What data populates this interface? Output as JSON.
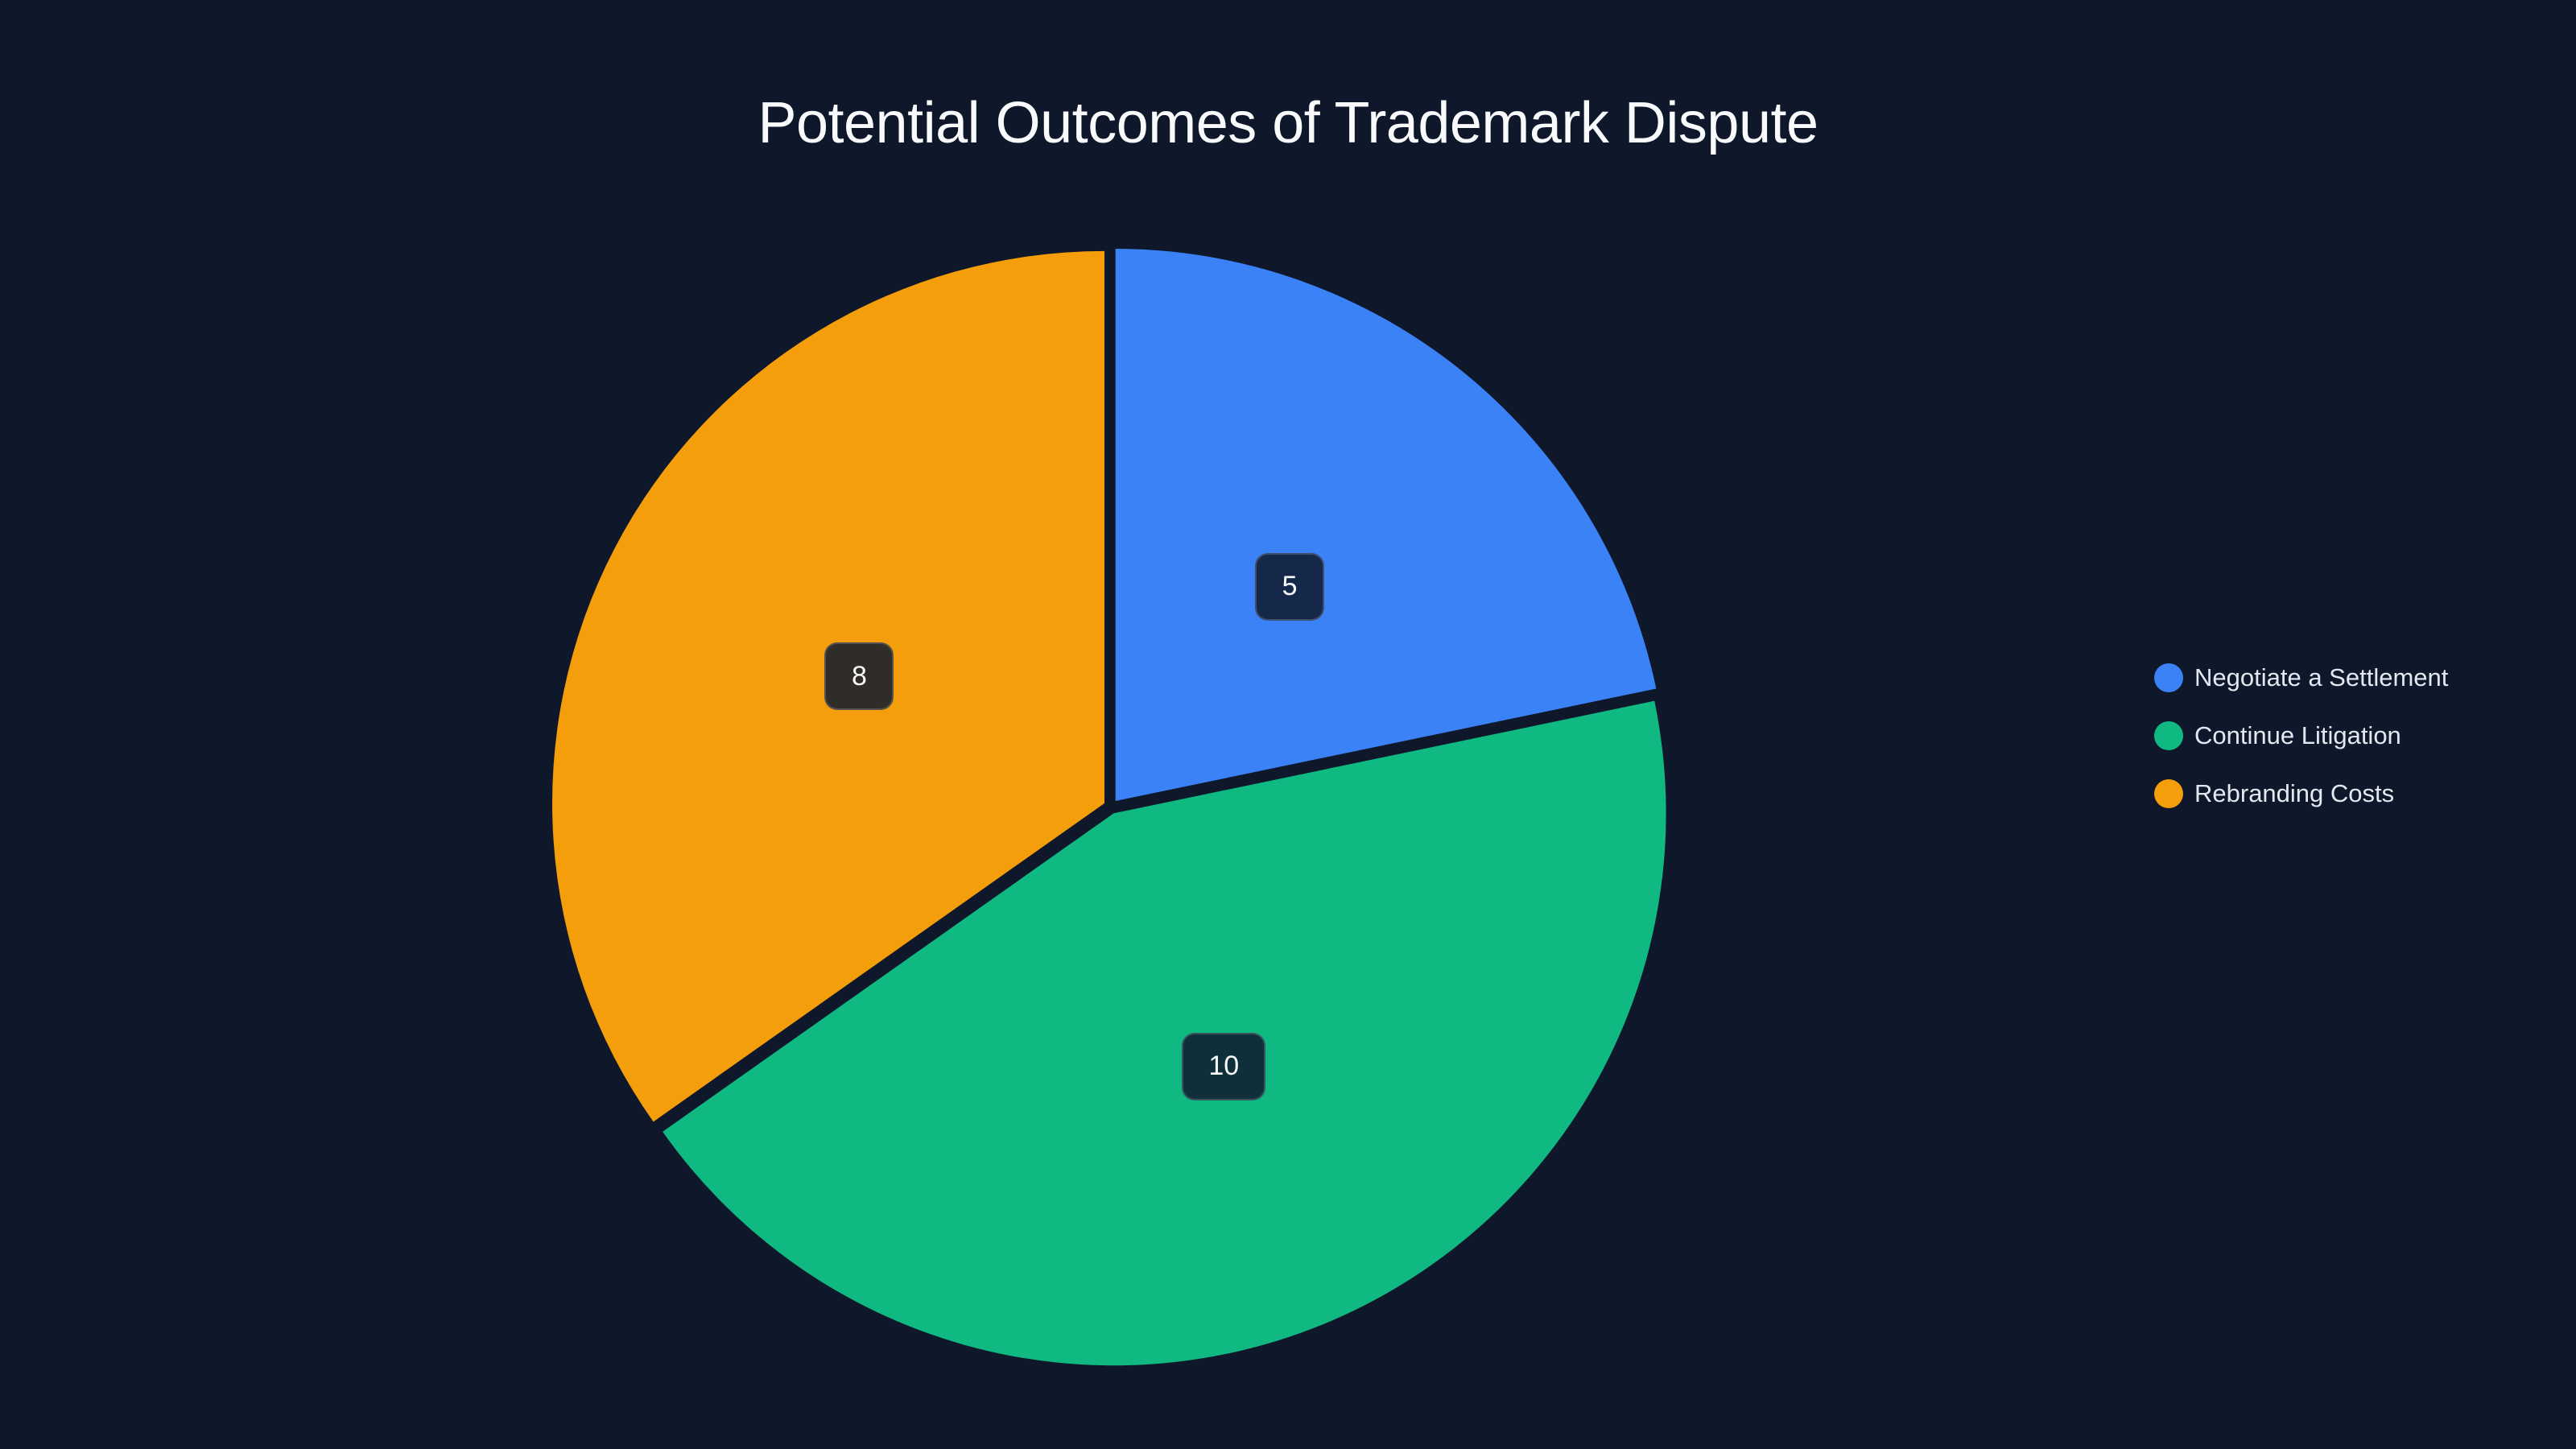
{
  "title": "Potential Outcomes of Trademark Dispute",
  "chart_data": {
    "type": "pie",
    "title": "Potential Outcomes of Trademark Dispute",
    "categories": [
      "Negotiate a Settlement",
      "Continue Litigation",
      "Rebranding Costs"
    ],
    "values": [
      5,
      10,
      8
    ],
    "colors": [
      "#3b82f6",
      "#10b981",
      "#f59e0b"
    ],
    "label_box_colors": [
      "#15284a",
      "#0f2f3a",
      "#302d28"
    ],
    "data_labels": [
      "5",
      "10",
      "8"
    ],
    "start_angle_deg": 0,
    "direction": "clockwise",
    "legend_position": "right",
    "exploded": true
  },
  "legend": {
    "items": [
      {
        "label": "Negotiate a Settlement",
        "color": "#3b82f6"
      },
      {
        "label": "Continue Litigation",
        "color": "#10b981"
      },
      {
        "label": "Rebranding Costs",
        "color": "#f59e0b"
      }
    ]
  },
  "theme": {
    "background": "#0f172a",
    "text": "#f8fafc"
  }
}
